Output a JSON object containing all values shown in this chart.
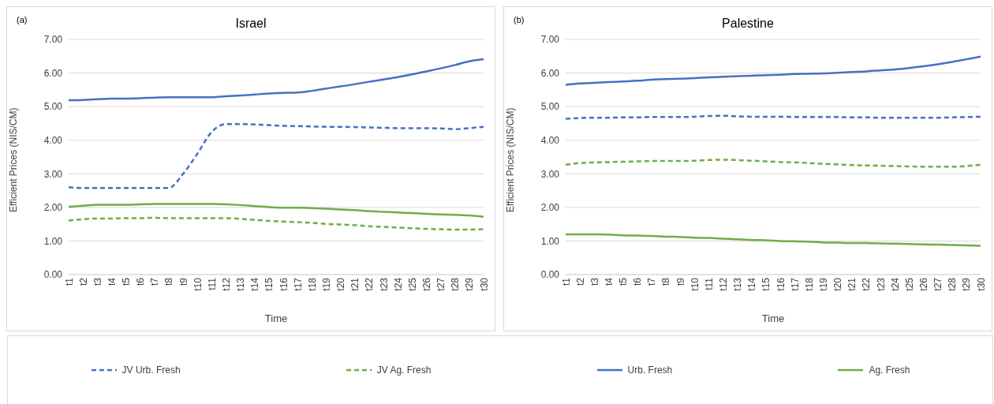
{
  "chart_data": [
    {
      "type": "line",
      "title": "Israel",
      "xlabel": "Time",
      "ylabel": "Efficient Prices (NIS/CM)",
      "annotations": [
        "(a)"
      ],
      "categories": [
        "t1",
        "t2",
        "t3",
        "t4",
        "t5",
        "t6",
        "t7",
        "t8",
        "t9",
        "t10",
        "t11",
        "t12",
        "t13",
        "t14",
        "t15",
        "t16",
        "t17",
        "t18",
        "t19",
        "t20",
        "t21",
        "t22",
        "t23",
        "t24",
        "t25",
        "t26",
        "t27",
        "t28",
        "t29",
        "t30"
      ],
      "series": [
        {
          "name": "JV Urb. Fresh",
          "color": "#4472c4",
          "line_style": "dashed",
          "values": [
            2.6,
            2.58,
            2.58,
            2.58,
            2.58,
            2.58,
            2.58,
            2.58,
            3.0,
            3.6,
            4.25,
            4.48,
            4.48,
            4.47,
            4.45,
            4.43,
            4.42,
            4.41,
            4.4,
            4.4,
            4.39,
            4.38,
            4.37,
            4.36,
            4.36,
            4.36,
            4.35,
            4.33,
            4.36,
            4.4
          ]
        },
        {
          "name": "JV Ag. Fresh",
          "color": "#70ad47",
          "line_style": "dashed",
          "values": [
            1.61,
            1.65,
            1.67,
            1.67,
            1.68,
            1.68,
            1.69,
            1.68,
            1.68,
            1.68,
            1.68,
            1.68,
            1.66,
            1.63,
            1.6,
            1.58,
            1.56,
            1.54,
            1.51,
            1.49,
            1.47,
            1.44,
            1.42,
            1.4,
            1.38,
            1.36,
            1.35,
            1.34,
            1.34,
            1.35
          ]
        },
        {
          "name": "Urb. Fresh",
          "color": "#4472c4",
          "line_style": "solid",
          "values": [
            5.19,
            5.2,
            5.22,
            5.24,
            5.24,
            5.25,
            5.27,
            5.28,
            5.28,
            5.28,
            5.28,
            5.31,
            5.33,
            5.36,
            5.39,
            5.41,
            5.42,
            5.47,
            5.54,
            5.6,
            5.67,
            5.74,
            5.81,
            5.88,
            5.96,
            6.05,
            6.14,
            6.24,
            6.35,
            6.41
          ]
        },
        {
          "name": "Ag. Fresh",
          "color": "#70ad47",
          "line_style": "solid",
          "values": [
            2.02,
            2.05,
            2.08,
            2.08,
            2.08,
            2.09,
            2.1,
            2.1,
            2.1,
            2.1,
            2.1,
            2.09,
            2.07,
            2.04,
            2.01,
            1.99,
            1.99,
            1.98,
            1.96,
            1.94,
            1.92,
            1.89,
            1.87,
            1.85,
            1.83,
            1.81,
            1.79,
            1.78,
            1.76,
            1.72
          ]
        }
      ],
      "ylim": [
        0,
        7
      ],
      "yticks": [
        {
          "value": 0,
          "label": "0.00"
        },
        {
          "value": 1,
          "label": "1.00"
        },
        {
          "value": 2,
          "label": "2.00"
        },
        {
          "value": 3,
          "label": "3.00"
        },
        {
          "value": 4,
          "label": "4.00"
        },
        {
          "value": 5,
          "label": "5.00"
        },
        {
          "value": 6,
          "label": "6.00"
        },
        {
          "value": 7,
          "label": "7.00"
        }
      ],
      "grid": "y",
      "legend": "bottom",
      "marker": "none"
    },
    {
      "type": "line",
      "title": "Palestine",
      "xlabel": "Time",
      "ylabel": "Efficient Prices (NIS/CM)",
      "annotations": [
        "(b)"
      ],
      "categories": [
        "t1",
        "t2",
        "t3",
        "t4",
        "t5",
        "t6",
        "t7",
        "t8",
        "t9",
        "t10",
        "t11",
        "t12",
        "t13",
        "t14",
        "t15",
        "t16",
        "t17",
        "t18",
        "t19",
        "t20",
        "t21",
        "t22",
        "t23",
        "t24",
        "t25",
        "t26",
        "t27",
        "t28",
        "t29",
        "t30"
      ],
      "series": [
        {
          "color": "#4472c4",
          "line_style": "dashed",
          "values": [
            4.64,
            4.66,
            4.67,
            4.67,
            4.68,
            4.68,
            4.69,
            4.69,
            4.69,
            4.7,
            4.72,
            4.73,
            4.71,
            4.7,
            4.7,
            4.7,
            4.69,
            4.69,
            4.69,
            4.69,
            4.68,
            4.68,
            4.67,
            4.67,
            4.67,
            4.67,
            4.67,
            4.68,
            4.69,
            4.7
          ]
        },
        {
          "color": "#70ad47",
          "line_style": "dashed",
          "values": [
            3.27,
            3.32,
            3.34,
            3.35,
            3.36,
            3.37,
            3.38,
            3.38,
            3.38,
            3.39,
            3.41,
            3.42,
            3.41,
            3.39,
            3.37,
            3.35,
            3.34,
            3.32,
            3.3,
            3.28,
            3.26,
            3.25,
            3.24,
            3.23,
            3.22,
            3.21,
            3.21,
            3.21,
            3.23,
            3.27
          ]
        },
        {
          "color": "#4472c4",
          "line_style": "solid",
          "values": [
            5.65,
            5.69,
            5.71,
            5.73,
            5.75,
            5.77,
            5.8,
            5.82,
            5.83,
            5.85,
            5.87,
            5.89,
            5.91,
            5.92,
            5.94,
            5.95,
            5.97,
            5.98,
            5.99,
            6.01,
            6.03,
            6.05,
            6.08,
            6.11,
            6.15,
            6.2,
            6.26,
            6.33,
            6.41,
            6.49
          ]
        },
        {
          "color": "#70ad47",
          "line_style": "solid",
          "values": [
            1.2,
            1.2,
            1.2,
            1.19,
            1.17,
            1.16,
            1.15,
            1.13,
            1.12,
            1.1,
            1.09,
            1.07,
            1.05,
            1.03,
            1.02,
            1.0,
            0.99,
            0.98,
            0.96,
            0.95,
            0.94,
            0.94,
            0.93,
            0.92,
            0.91,
            0.9,
            0.89,
            0.88,
            0.87,
            0.86
          ]
        }
      ],
      "ylim": [
        0,
        7
      ],
      "yticks": [
        {
          "value": 0,
          "label": "0.00"
        },
        {
          "value": 1,
          "label": "1.00"
        },
        {
          "value": 2,
          "label": "2.00"
        },
        {
          "value": 3,
          "label": "3.00"
        },
        {
          "value": 4,
          "label": "4.00"
        },
        {
          "value": 5,
          "label": "5.00"
        },
        {
          "value": 6,
          "label": "6.00"
        },
        {
          "value": 7,
          "label": "7.00"
        }
      ],
      "grid": "y",
      "legend": false,
      "marker": "none"
    }
  ]
}
